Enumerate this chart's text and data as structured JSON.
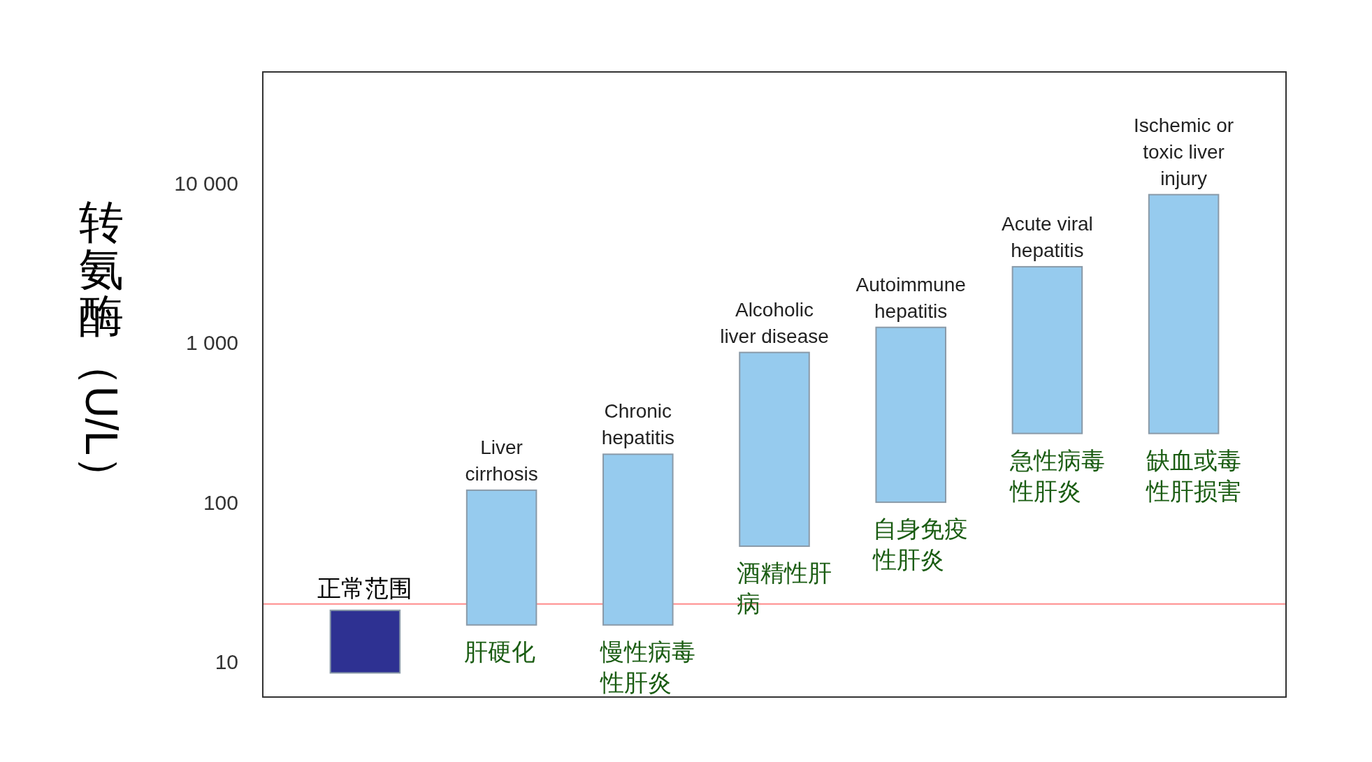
{
  "chart_data": {
    "type": "bar",
    "ylabel": "转氨酶（U/L）",
    "categories": [
      "正常范围",
      "肝硬化",
      "慢性病毒性肝炎",
      "酒精性肝病",
      "自身免疫性肝炎",
      "急性病毒性肝炎",
      "缺血或毒性肝损害"
    ],
    "base": [
      8.5,
      17,
      17,
      53,
      100,
      270,
      270
    ],
    "values": [
      12.5,
      102,
      183,
      817,
      1150,
      2730,
      8230
    ],
    "colors": [
      "#2e3192",
      "#96cbee",
      "#96cbee",
      "#96cbee",
      "#96cbee",
      "#96cbee",
      "#96cbee"
    ],
    "log": true,
    "ylim": [
      6,
      50000
    ],
    "yticks": [
      10,
      100,
      {
        "value": 1000,
        "label": "1 000"
      },
      {
        "value": 10000,
        "label": "10 000"
      }
    ],
    "ref_lines": [
      {
        "axis": "y",
        "value": 23,
        "color": "#ff8c8c"
      }
    ],
    "annotations": [
      {
        "text": "Liver cirrhosis",
        "x": "肝硬化",
        "y": 119
      },
      {
        "text": "Chronic hepatitis",
        "x": "慢性病毒性肝炎",
        "y": 200
      },
      {
        "text": "Alcoholic liver disease",
        "x": "酒精性肝病",
        "y": 870
      },
      {
        "text": "Autoimmune hepatitis",
        "x": "自身免疫性肝炎",
        "y": 1250
      },
      {
        "text": "Acute viral hepatitis",
        "x": "急性病毒性肝炎",
        "y": 3000
      },
      {
        "text": "Ischemic or toxic liver injury",
        "x": "缺血或毒性肝损害",
        "y": 8500
      }
    ]
  }
}
